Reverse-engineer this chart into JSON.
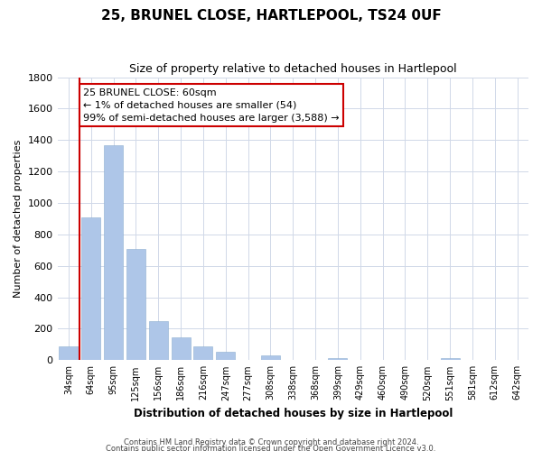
{
  "title": "25, BRUNEL CLOSE, HARTLEPOOL, TS24 0UF",
  "subtitle": "Size of property relative to detached houses in Hartlepool",
  "xlabel": "Distribution of detached houses by size in Hartlepool",
  "ylabel": "Number of detached properties",
  "bar_labels": [
    "34sqm",
    "64sqm",
    "95sqm",
    "125sqm",
    "156sqm",
    "186sqm",
    "216sqm",
    "247sqm",
    "277sqm",
    "308sqm",
    "338sqm",
    "368sqm",
    "399sqm",
    "429sqm",
    "460sqm",
    "490sqm",
    "520sqm",
    "551sqm",
    "581sqm",
    "612sqm",
    "642sqm"
  ],
  "bar_values": [
    90,
    910,
    1370,
    710,
    250,
    145,
    90,
    55,
    0,
    30,
    0,
    0,
    15,
    0,
    0,
    0,
    0,
    15,
    0,
    0,
    0
  ],
  "bar_color": "#aec6e8",
  "marker_color": "#cc0000",
  "ylim": [
    0,
    1800
  ],
  "yticks": [
    0,
    200,
    400,
    600,
    800,
    1000,
    1200,
    1400,
    1600,
    1800
  ],
  "annotation_line0": "25 BRUNEL CLOSE: 60sqm",
  "annotation_line1": "← 1% of detached houses are smaller (54)",
  "annotation_line2": "99% of semi-detached houses are larger (3,588) →",
  "footer1": "Contains HM Land Registry data © Crown copyright and database right 2024.",
  "footer2": "Contains public sector information licensed under the Open Government Licence v3.0.",
  "background_color": "#ffffff",
  "grid_color": "#d0d8e8"
}
